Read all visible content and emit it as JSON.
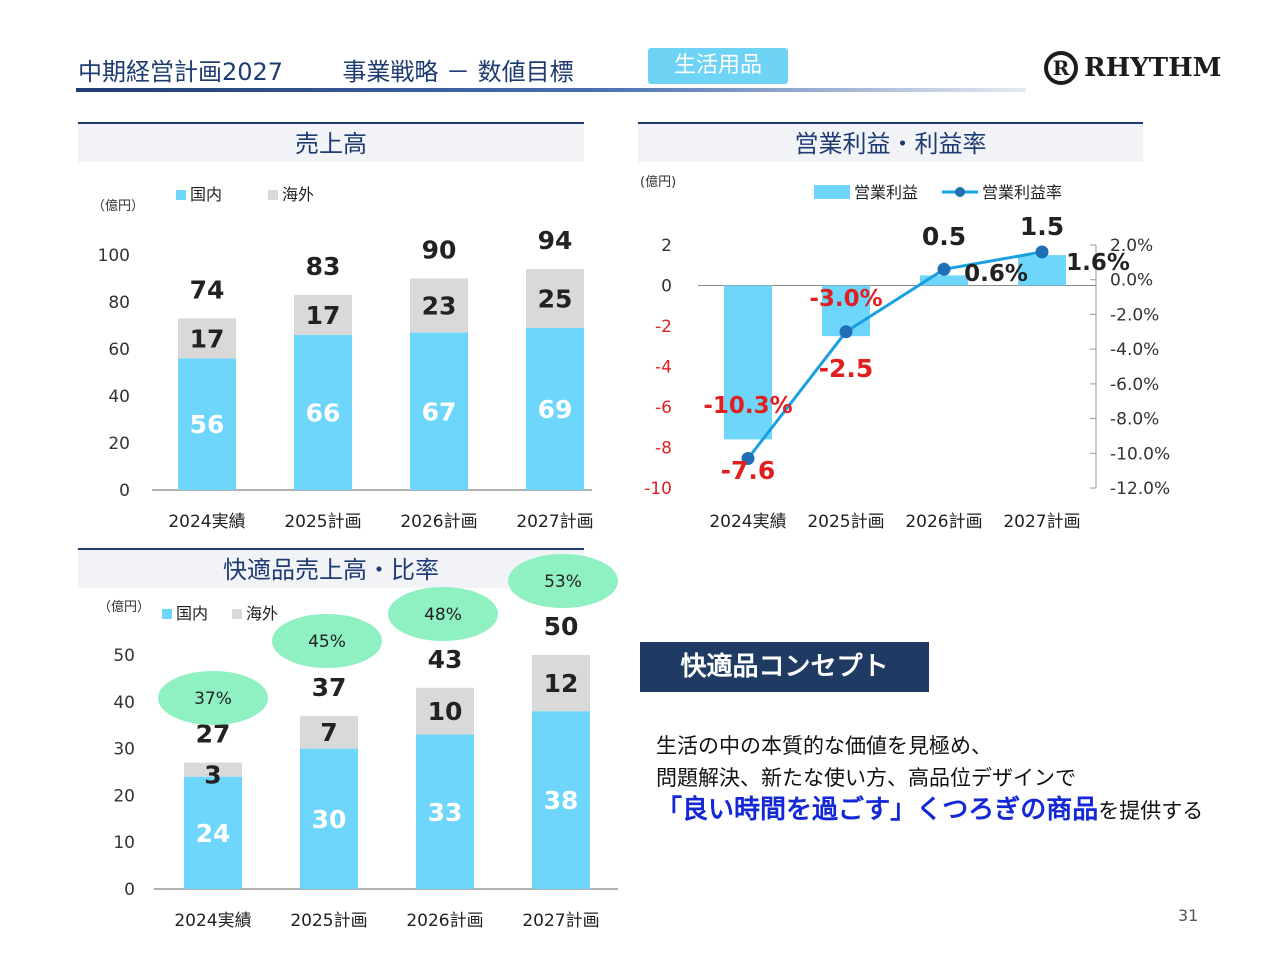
{
  "header": {
    "title_part1": "中期経営計画2027",
    "title_part2": "事業戦略 － 数値目標",
    "badge": "生活用品",
    "logo_text": "RHYTHM",
    "logo_mark": "R"
  },
  "colors": {
    "domestic": "#6dd6fa",
    "overseas": "#d9d9d9",
    "line": "#1a9fe0",
    "line_point": "#1e6fb5",
    "negative_label": "#e02020",
    "ratio_bubble": "#8ff0c2",
    "title_navy": "#1f3b73"
  },
  "chart_data": [
    {
      "id": "sales",
      "type": "bar",
      "stacked": true,
      "title": "売上高",
      "unit": "（億円）",
      "categories": [
        "2024実績",
        "2025計画",
        "2026計画",
        "2027計画"
      ],
      "series": [
        {
          "name": "国内",
          "values": [
            56,
            66,
            67,
            69
          ]
        },
        {
          "name": "海外",
          "values": [
            17,
            17,
            23,
            25
          ]
        }
      ],
      "totals": [
        74,
        83,
        90,
        94
      ],
      "ylim": [
        0,
        100
      ],
      "yticks": [
        0,
        20,
        40,
        60,
        80,
        100
      ],
      "grid": false,
      "legend": "top-left"
    },
    {
      "id": "profit",
      "type": "bar",
      "title": "営業利益・利益率",
      "unit": "(億円)",
      "categories": [
        "2024実績",
        "2025計画",
        "2026計画",
        "2027計画"
      ],
      "series": [
        {
          "name": "営業利益",
          "values": [
            -7.6,
            -2.5,
            0.5,
            1.5
          ],
          "value_labels": [
            "-7.6",
            "-2.5",
            "0.5",
            "1.5"
          ]
        },
        {
          "name": "営業利益率",
          "type": "line",
          "axis": "right",
          "values": [
            -10.3,
            -3.0,
            0.6,
            1.6
          ],
          "value_labels": [
            "-10.3%",
            "-3.0%",
            "0.6%",
            "1.6%"
          ]
        }
      ],
      "ylim": [
        -10,
        2
      ],
      "yticks": [
        -10,
        -8,
        -6,
        -4,
        -2,
        0,
        2
      ],
      "y2lim": [
        -12,
        2
      ],
      "y2ticks": [
        "2.0%",
        "0.0%",
        "-2.0%",
        "-4.0%",
        "-6.0%",
        "-8.0%",
        "-10.0%",
        "-12.0%"
      ],
      "y2tick_values": [
        2,
        0,
        -2,
        -4,
        -6,
        -8,
        -10,
        -12
      ],
      "grid": false,
      "legend": "top-right"
    },
    {
      "id": "comfort",
      "type": "bar",
      "stacked": true,
      "title": "快適品売上高・比率",
      "unit": "（億円）",
      "categories": [
        "2024実績",
        "2025計画",
        "2026計画",
        "2027計画"
      ],
      "series": [
        {
          "name": "国内",
          "values": [
            24,
            30,
            33,
            38
          ]
        },
        {
          "name": "海外",
          "values": [
            3,
            7,
            10,
            12
          ]
        }
      ],
      "totals": [
        27,
        37,
        43,
        50
      ],
      "ratios": [
        "37%",
        "45%",
        "48%",
        "53%"
      ],
      "ylim": [
        0,
        50
      ],
      "yticks": [
        0,
        10,
        20,
        30,
        40,
        50
      ],
      "grid": false,
      "legend": "top-left"
    }
  ],
  "concept": {
    "title": "快適品コンセプト",
    "line1": "生活の中の本質的な価値を見極め、",
    "line2": "問題解決、新たな使い方、高品位デザインで",
    "line3_emphasis": "「良い時間を過ごす」くつろぎの商品",
    "line3_rest": "を提供する"
  },
  "page_number": "31"
}
